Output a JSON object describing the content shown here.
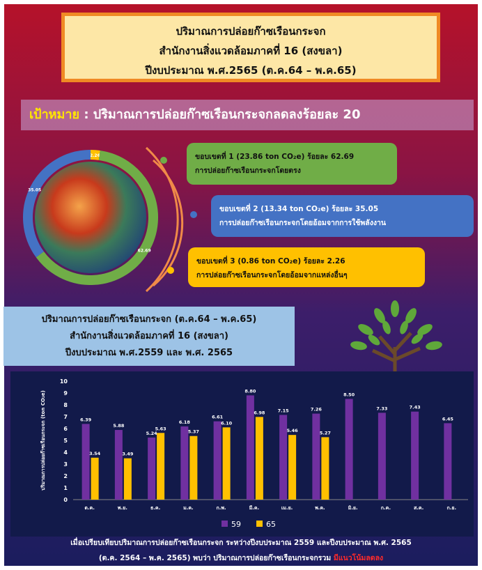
{
  "header": {
    "lines": [
      "ปริมาณการปล่อยก๊าซเรือนกระจก",
      "สำนักงานสิ่งแวดล้อมภาคที่ 16 (สงขลา)",
      "ปีงบประมาณ พ.ศ.2565 (ต.ค.64 – พ.ค.65)"
    ]
  },
  "goal": {
    "label": "เป้าหมาย",
    "text": " : ปริมาณการปล่อยก๊าซเรือนกระจกลดลงร้อยละ 20"
  },
  "scopes": [
    {
      "title": "ขอบเขตที่ 1 (23.86 ton CO₂e) ร้อยละ 62.69",
      "desc": "การปล่อยก๊าซเรือนกระจกโดยตรง"
    },
    {
      "title": "ขอบเขตที่ 2 (13.34 ton CO₂e) ร้อยละ 35.05",
      "desc": "การปล่อยก๊าซเรือนกระจกโดยอ้อมจากการใช้พลังงาน"
    },
    {
      "title": "ขอบเขตที่ 3 (0.86 ton CO₂e) ร้อยละ 2.26",
      "desc": "การปล่อยก๊าซเรือนกระจกโดยอ้อมจากแหล่งอื่นๆ"
    }
  ],
  "comparison": {
    "lines": [
      "ปริมาณการปล่อยก๊าซเรือนกระจก (ต.ค.64 – พ.ค.65)",
      "สำนักงานสิ่งแวดล้อมภาคที่ 16 (สงขลา)",
      "ปีงบประมาณ พ.ศ.2559 และ พ.ศ. 2565"
    ]
  },
  "chart_data": [
    {
      "type": "pie",
      "values": [
        2.26,
        62.69,
        35.05
      ],
      "colors": [
        "#ffc000",
        "#70ad47",
        "#4472c4"
      ]
    },
    {
      "type": "bar",
      "y_label": "ปริมาณการปล่อยก๊าซเรือนกระจก (ton CO₂e)",
      "categories": [
        "ต.ค.",
        "พ.ย.",
        "ธ.ค.",
        "ม.ค.",
        "ก.พ.",
        "มี.ค.",
        "เม.ย.",
        "พ.ค.",
        "มิ.ย.",
        "ก.ค.",
        "ส.ค.",
        "ก.ย."
      ],
      "series": [
        {
          "name": "59",
          "color": "#7030a0",
          "values": [
            6.39,
            5.88,
            5.24,
            6.18,
            6.61,
            8.8,
            7.15,
            7.26,
            8.5,
            7.33,
            7.43,
            6.45
          ],
          "value_labels": [
            "6.39",
            "5.88",
            "5.24",
            "6.18",
            "6.61",
            "8.80",
            "7.15",
            "7.26",
            "8.50",
            "7.33",
            "7.43",
            "6.45"
          ]
        },
        {
          "name": "65",
          "color": "#ffc000",
          "values": [
            3.54,
            3.49,
            5.63,
            5.37,
            6.1,
            6.98,
            5.46,
            5.27,
            null,
            null,
            null,
            null
          ],
          "value_labels": [
            "3.54",
            "3.49",
            "5.63",
            "5.37",
            "6.10",
            "6.98",
            "5.46",
            "5.27",
            null,
            null,
            null,
            null
          ]
        }
      ],
      "ylim": [
        0,
        10
      ],
      "yticks": [
        0,
        1,
        2,
        3,
        4,
        5,
        6,
        7,
        8,
        9,
        10
      ],
      "grid": false,
      "legend": "bottom"
    }
  ],
  "footer": {
    "line1": "เมื่อเปรียบเทียบปริมาณการปล่อยก๊าซเรือนกระจก ระหว่างปีงบประมาณ 2559 และปีงบประมาณ พ.ศ. 2565",
    "line2": "(ต.ค. 2564 – พ.ค. 2565) พบว่า ปริมาณการปล่อยก๊าซเรือนกระจกรวม ",
    "highlight": "มีแนวโน้มลดลง"
  }
}
